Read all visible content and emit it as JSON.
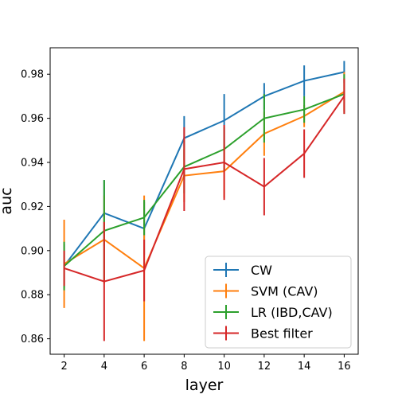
{
  "chart_data": {
    "type": "line",
    "title": "",
    "xlabel": "layer",
    "ylabel": "auc",
    "x": [
      2,
      4,
      6,
      8,
      10,
      12,
      14,
      16
    ],
    "xticks": [
      "2",
      "4",
      "6",
      "8",
      "10",
      "12",
      "14",
      "16"
    ],
    "yticks": [
      "0.86",
      "0.88",
      "0.90",
      "0.92",
      "0.94",
      "0.96",
      "0.98"
    ],
    "xlim": [
      1.3,
      16.7
    ],
    "ylim": [
      0.853,
      0.992
    ],
    "grid": false,
    "legend_position": "bottom-right",
    "series": [
      {
        "name": "CW",
        "color": "#1f77b4",
        "values": [
          0.893,
          0.917,
          0.91,
          0.951,
          0.959,
          0.97,
          0.977,
          0.981
        ],
        "error": [
          0.01,
          0.015,
          0.012,
          0.01,
          0.012,
          0.006,
          0.007,
          0.005
        ]
      },
      {
        "name": "SVM (CAV)",
        "color": "#ff7f0e",
        "values": [
          0.894,
          0.905,
          0.892,
          0.934,
          0.936,
          0.953,
          0.961,
          0.972
        ],
        "error": [
          0.02,
          0.02,
          0.033,
          0.012,
          0.012,
          0.01,
          0.005,
          0.009
        ]
      },
      {
        "name": "LR (IBD,CAV)",
        "color": "#2ca02c",
        "values": [
          0.893,
          0.909,
          0.915,
          0.938,
          0.946,
          0.96,
          0.964,
          0.971
        ],
        "error": [
          0.011,
          0.023,
          0.008,
          0.012,
          0.01,
          0.011,
          0.006,
          0.009
        ]
      },
      {
        "name": "Best filter",
        "color": "#d62728",
        "values": [
          0.892,
          0.886,
          0.891,
          0.937,
          0.94,
          0.929,
          0.944,
          0.97
        ],
        "error": [
          0.008,
          0.027,
          0.014,
          0.019,
          0.017,
          0.013,
          0.011,
          0.008
        ]
      }
    ]
  }
}
